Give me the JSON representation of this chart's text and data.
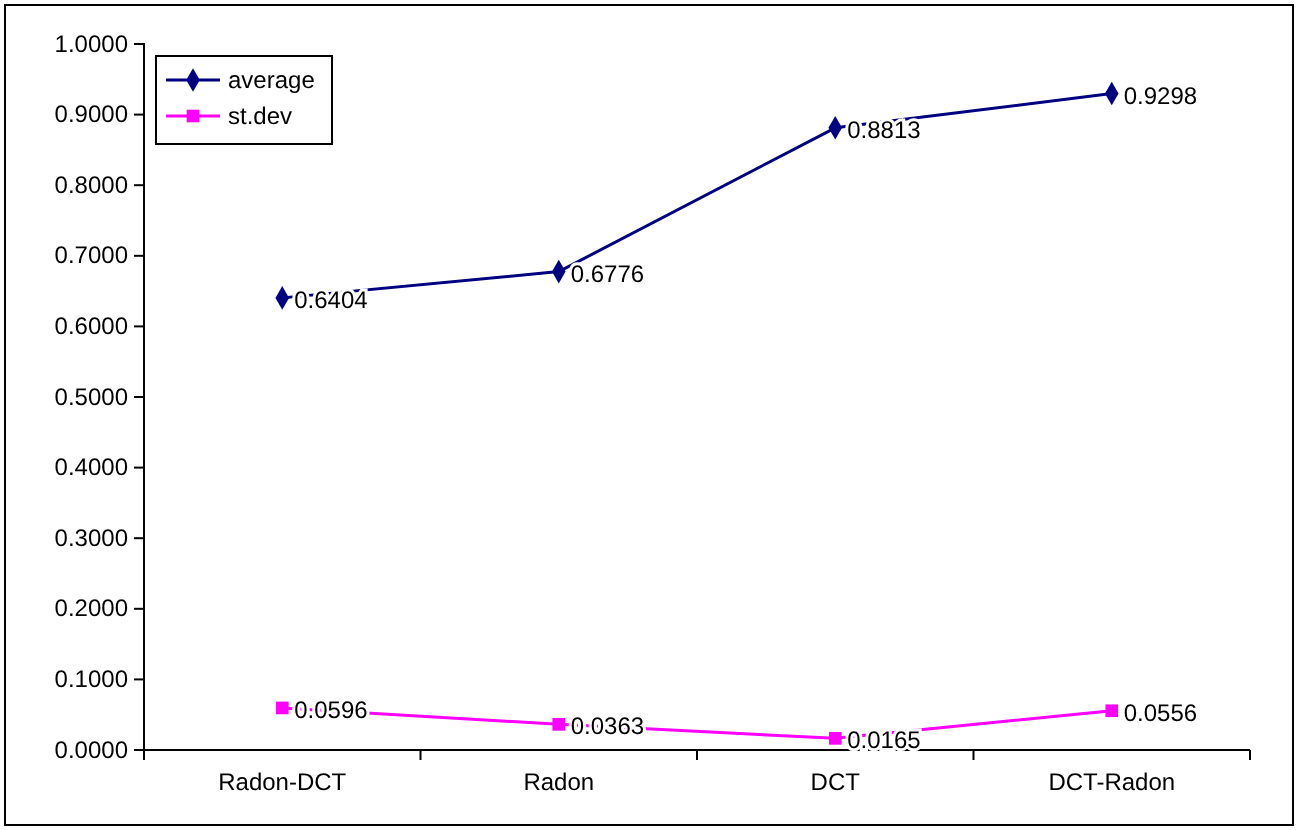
{
  "chart_data": {
    "type": "line",
    "categories": [
      "Radon-DCT",
      "Radon",
      "DCT",
      "DCT-Radon"
    ],
    "series": [
      {
        "name": "average",
        "color": "#000080",
        "marker": "diamond",
        "values": [
          0.6404,
          0.6776,
          0.8813,
          0.9298
        ],
        "value_labels": [
          "0.6404",
          "0.6776",
          "0.8813",
          "0.9298"
        ]
      },
      {
        "name": "st.dev",
        "color": "#ff00ff",
        "marker": "square",
        "values": [
          0.0596,
          0.0363,
          0.0165,
          0.0556
        ],
        "value_labels": [
          "0.0596",
          "0.0363",
          "0.0165",
          "0.0556"
        ]
      }
    ],
    "ylim": [
      0,
      1
    ],
    "yticks": [
      {
        "value": 0,
        "label": "0.0000"
      },
      {
        "value": 0.1,
        "label": "0.1000"
      },
      {
        "value": 0.2,
        "label": "0.2000"
      },
      {
        "value": 0.3,
        "label": "0.3000"
      },
      {
        "value": 0.4,
        "label": "0.4000"
      },
      {
        "value": 0.5,
        "label": "0.5000"
      },
      {
        "value": 0.6,
        "label": "0.6000"
      },
      {
        "value": 0.7,
        "label": "0.7000"
      },
      {
        "value": 0.8,
        "label": "0.8000"
      },
      {
        "value": 0.9,
        "label": "0.9000"
      },
      {
        "value": 1,
        "label": "1.0000"
      }
    ],
    "grid": false,
    "legend": "top left",
    "line_style": "solid"
  }
}
